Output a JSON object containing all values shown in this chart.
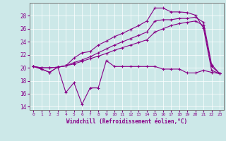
{
  "title": "",
  "xlabel": "Windchill (Refroidissement éolien,°C)",
  "background_color": "#cce8e8",
  "line_color": "#880088",
  "hours": [
    0,
    1,
    2,
    3,
    4,
    5,
    6,
    7,
    8,
    9,
    10,
    11,
    12,
    13,
    14,
    15,
    16,
    17,
    18,
    19,
    20,
    21,
    22,
    23
  ],
  "windchill": [
    20.2,
    19.8,
    19.3,
    20.1,
    16.2,
    17.7,
    14.4,
    16.9,
    16.9,
    21.1,
    20.2,
    20.2,
    20.2,
    20.2,
    20.2,
    20.2,
    19.8,
    19.8,
    19.8,
    19.2,
    19.2,
    19.6,
    19.3,
    19.1
  ],
  "temp_line1": [
    20.2,
    19.8,
    19.3,
    20.1,
    20.3,
    21.5,
    22.3,
    22.5,
    23.5,
    24.1,
    24.8,
    25.3,
    25.9,
    26.5,
    27.2,
    29.2,
    29.2,
    28.6,
    28.6,
    28.5,
    28.1,
    26.1,
    19.6,
    19.1
  ],
  "temp_line2": [
    20.2,
    20.0,
    20.0,
    20.1,
    20.3,
    20.8,
    21.2,
    21.7,
    22.3,
    22.9,
    23.5,
    24.0,
    24.5,
    25.0,
    25.5,
    27.2,
    27.4,
    27.4,
    27.6,
    27.6,
    27.8,
    27.0,
    20.5,
    19.1
  ],
  "temp_line3": [
    20.2,
    20.0,
    20.0,
    20.1,
    20.3,
    20.6,
    21.0,
    21.4,
    21.8,
    22.2,
    22.7,
    23.1,
    23.5,
    23.9,
    24.3,
    25.5,
    26.0,
    26.5,
    26.8,
    27.0,
    27.2,
    26.5,
    20.2,
    19.1
  ],
  "ylim": [
    13.5,
    30.0
  ],
  "yticks": [
    14,
    16,
    18,
    20,
    22,
    24,
    26,
    28
  ],
  "xlim": [
    -0.5,
    23.5
  ]
}
